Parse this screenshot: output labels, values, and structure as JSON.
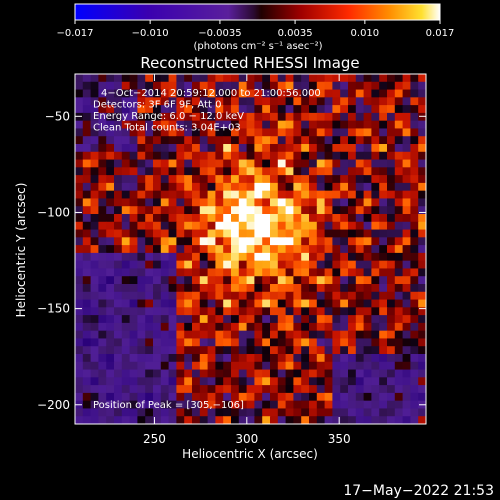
{
  "chart_data": {
    "type": "heatmap",
    "title": "Reconstructed RHESSI Image",
    "xlabel": "Heliocentric X (arcsec)",
    "ylabel": "Heliocentric Y (arcsec)",
    "xlim": [
      207,
      397
    ],
    "ylim": [
      -210,
      -28
    ],
    "x_ticks": [
      250,
      300,
      350
    ],
    "y_ticks": [
      -50,
      -100,
      -150,
      -200
    ],
    "colorbar": {
      "range": [
        -0.017,
        0.017
      ],
      "tick_values": [
        -0.017,
        -0.01,
        -0.0035,
        0.0035,
        0.01,
        0.017
      ],
      "tick_labels": [
        "−0.017",
        "−0.010",
        "−0.0035",
        "0.0035",
        "0.010",
        "0.017"
      ],
      "unit_label": "(photons cm⁻² s⁻¹ asec⁻²)",
      "colors": [
        "#0000ff",
        "#3a00b0",
        "#5a1f9c",
        "#6a2a86",
        "#000000",
        "#8b0000",
        "#ff0000",
        "#ff8000",
        "#ffd000",
        "#ffffff"
      ]
    },
    "annotations": [
      "4−Oct−2014 20:59:12.000 to 21:00:56.000",
      "Detectors: 3F 6F 9F, Att 0",
      "Energy Range: 6.0 − 12.0 keV",
      "Clean    Total counts: 3.04E+03"
    ],
    "peak_label": "Position of Peak = [305,−106]",
    "peak": [
      305,
      -106
    ],
    "date_stamp": "17−May−2022 21:53"
  }
}
